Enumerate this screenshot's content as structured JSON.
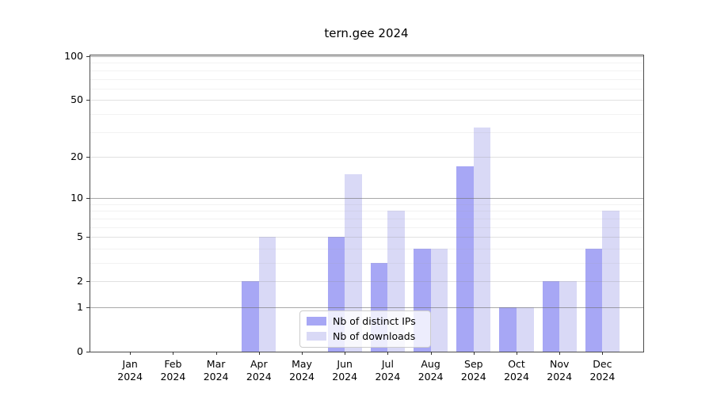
{
  "title": "tern.gee 2024",
  "legend": {
    "position": "lower center",
    "items": [
      {
        "label": "Nb of distinct IPs",
        "color": "#a7a7f5"
      },
      {
        "label": "Nb of downloads",
        "color": "#d9d9f6"
      }
    ]
  },
  "chart_data": {
    "type": "bar",
    "title": "tern.gee 2024",
    "categories": [
      "Jan",
      "Feb",
      "Mar",
      "Apr",
      "May",
      "Jun",
      "Jul",
      "Aug",
      "Sep",
      "Oct",
      "Nov",
      "Dec"
    ],
    "category_year": "2024",
    "series": [
      {
        "name": "Nb of distinct IPs",
        "color": "#a7a7f5",
        "values": [
          0,
          0,
          0,
          2,
          0,
          5,
          3,
          4,
          17,
          1,
          2,
          4
        ]
      },
      {
        "name": "Nb of downloads",
        "color": "#d9d9f6",
        "values": [
          0,
          0,
          0,
          5,
          0,
          15,
          8,
          4,
          32,
          1,
          2,
          8
        ]
      }
    ],
    "xlabel": "",
    "ylabel": "",
    "yscale": "log10(value+1)",
    "ylim": [
      0,
      102.5
    ],
    "yticks": [
      0,
      1,
      2,
      5,
      10,
      20,
      50,
      100
    ],
    "grid": "on",
    "grid_decade_lines": [
      1,
      10,
      100
    ],
    "grid_labeled_lines": [
      2,
      5,
      20,
      50
    ],
    "grid_minor_lines": [
      3,
      4,
      6,
      7,
      8,
      9,
      30,
      40,
      60,
      70,
      80,
      90
    ],
    "legend_position": "lower center"
  }
}
